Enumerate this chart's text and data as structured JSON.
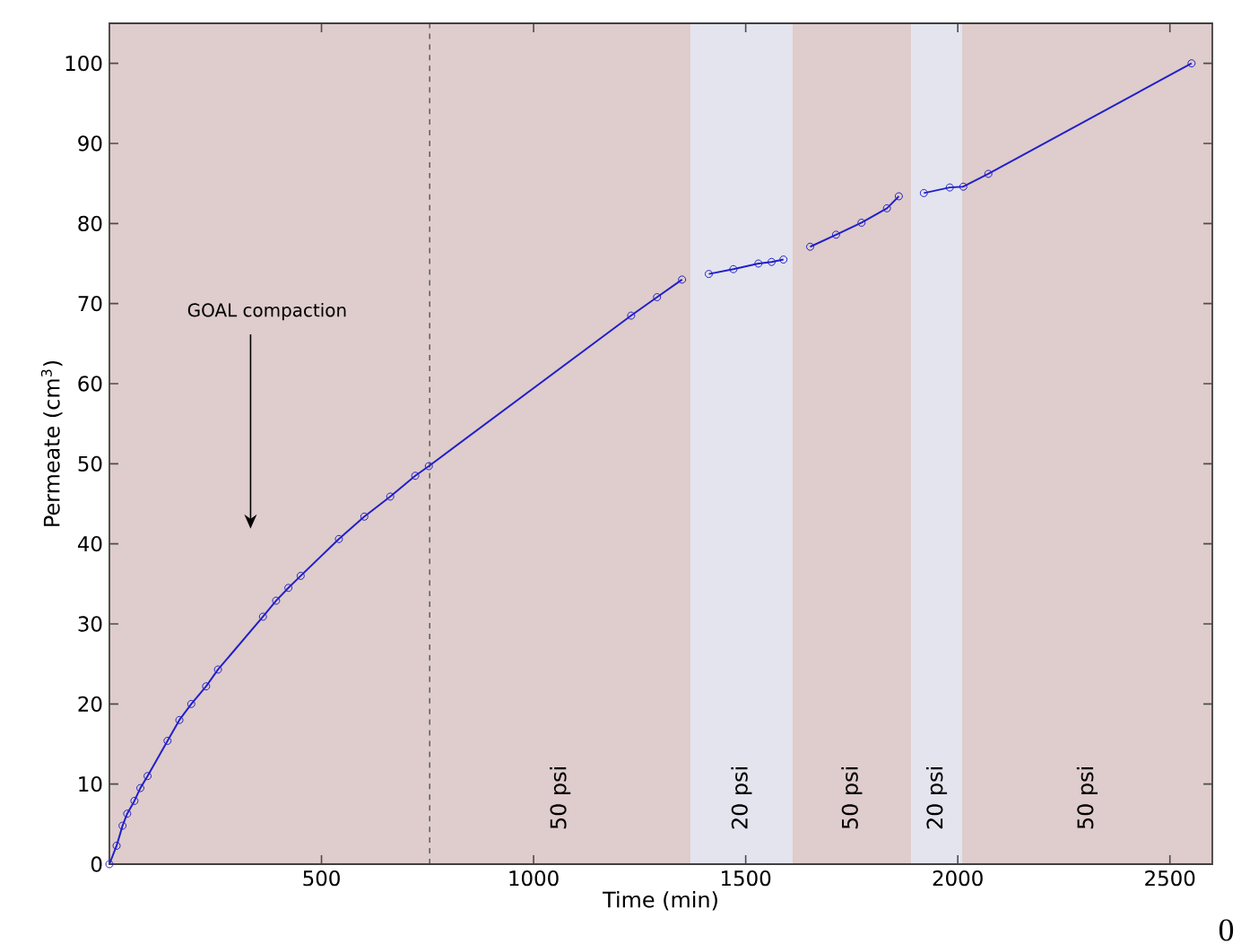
{
  "chart_data": {
    "type": "line",
    "xlabel": "Time (min)",
    "ylabel": "Permeate (cm$^{3}$)",
    "xlim": [
      0,
      2600
    ],
    "ylim": [
      0,
      105
    ],
    "xticks": [
      500,
      1000,
      1500,
      2000,
      2500
    ],
    "yticks": [
      0,
      10,
      20,
      30,
      40,
      50,
      60,
      70,
      80,
      90,
      100
    ],
    "marker": "circle",
    "line_style": "solid",
    "grid": false,
    "series": [
      {
        "color": "#2020c8",
        "x": [
          0,
          17,
          31,
          42,
          59,
          73,
          90,
          137,
          165,
          193,
          228,
          256,
          362,
          393,
          422,
          451,
          541,
          601,
          662,
          721,
          753,
          1230,
          1291,
          1350
        ],
        "values": [
          0,
          2.3,
          4.8,
          6.3,
          7.9,
          9.5,
          11.0,
          15.4,
          18.0,
          20.0,
          22.2,
          24.3,
          30.9,
          32.9,
          34.5,
          36.0,
          40.6,
          43.4,
          45.9,
          48.5,
          49.7,
          68.5,
          70.8,
          73.0
        ]
      },
      {
        "color": "#2020c8",
        "x": [
          1413,
          1471,
          1530,
          1561,
          1589
        ],
        "values": [
          73.7,
          74.3,
          75.0,
          75.2,
          75.5
        ]
      },
      {
        "color": "#2020c8",
        "x": [
          1652,
          1713,
          1773,
          1833,
          1861
        ],
        "values": [
          77.1,
          78.6,
          80.1,
          81.9,
          83.4
        ]
      },
      {
        "color": "#2020c8",
        "x": [
          1920,
          1981,
          2013,
          2072,
          2551
        ],
        "values": [
          83.8,
          84.5,
          84.6,
          86.2,
          100
        ]
      }
    ],
    "ref_lines": [
      {
        "axis": "x",
        "value": 755,
        "color": "#404040",
        "line_style": "dashed"
      }
    ],
    "bands": [
      {
        "axis": "x",
        "from": 0,
        "to": 1370,
        "label": "50 psi",
        "color": "#dfcccc"
      },
      {
        "axis": "x",
        "from": 1370,
        "to": 1610,
        "label": "20 psi",
        "color": "#e4e4ee"
      },
      {
        "axis": "x",
        "from": 1610,
        "to": 1890,
        "label": "50 psi",
        "color": "#dfcccc"
      },
      {
        "axis": "x",
        "from": 1890,
        "to": 2010,
        "label": "20 psi",
        "color": "#e4e4ee"
      },
      {
        "axis": "x",
        "from": 2010,
        "to": 2600,
        "label": "50 psi",
        "color": "#dfcccc"
      }
    ],
    "annotations": [
      "GOAL compaction",
      "0"
    ]
  }
}
